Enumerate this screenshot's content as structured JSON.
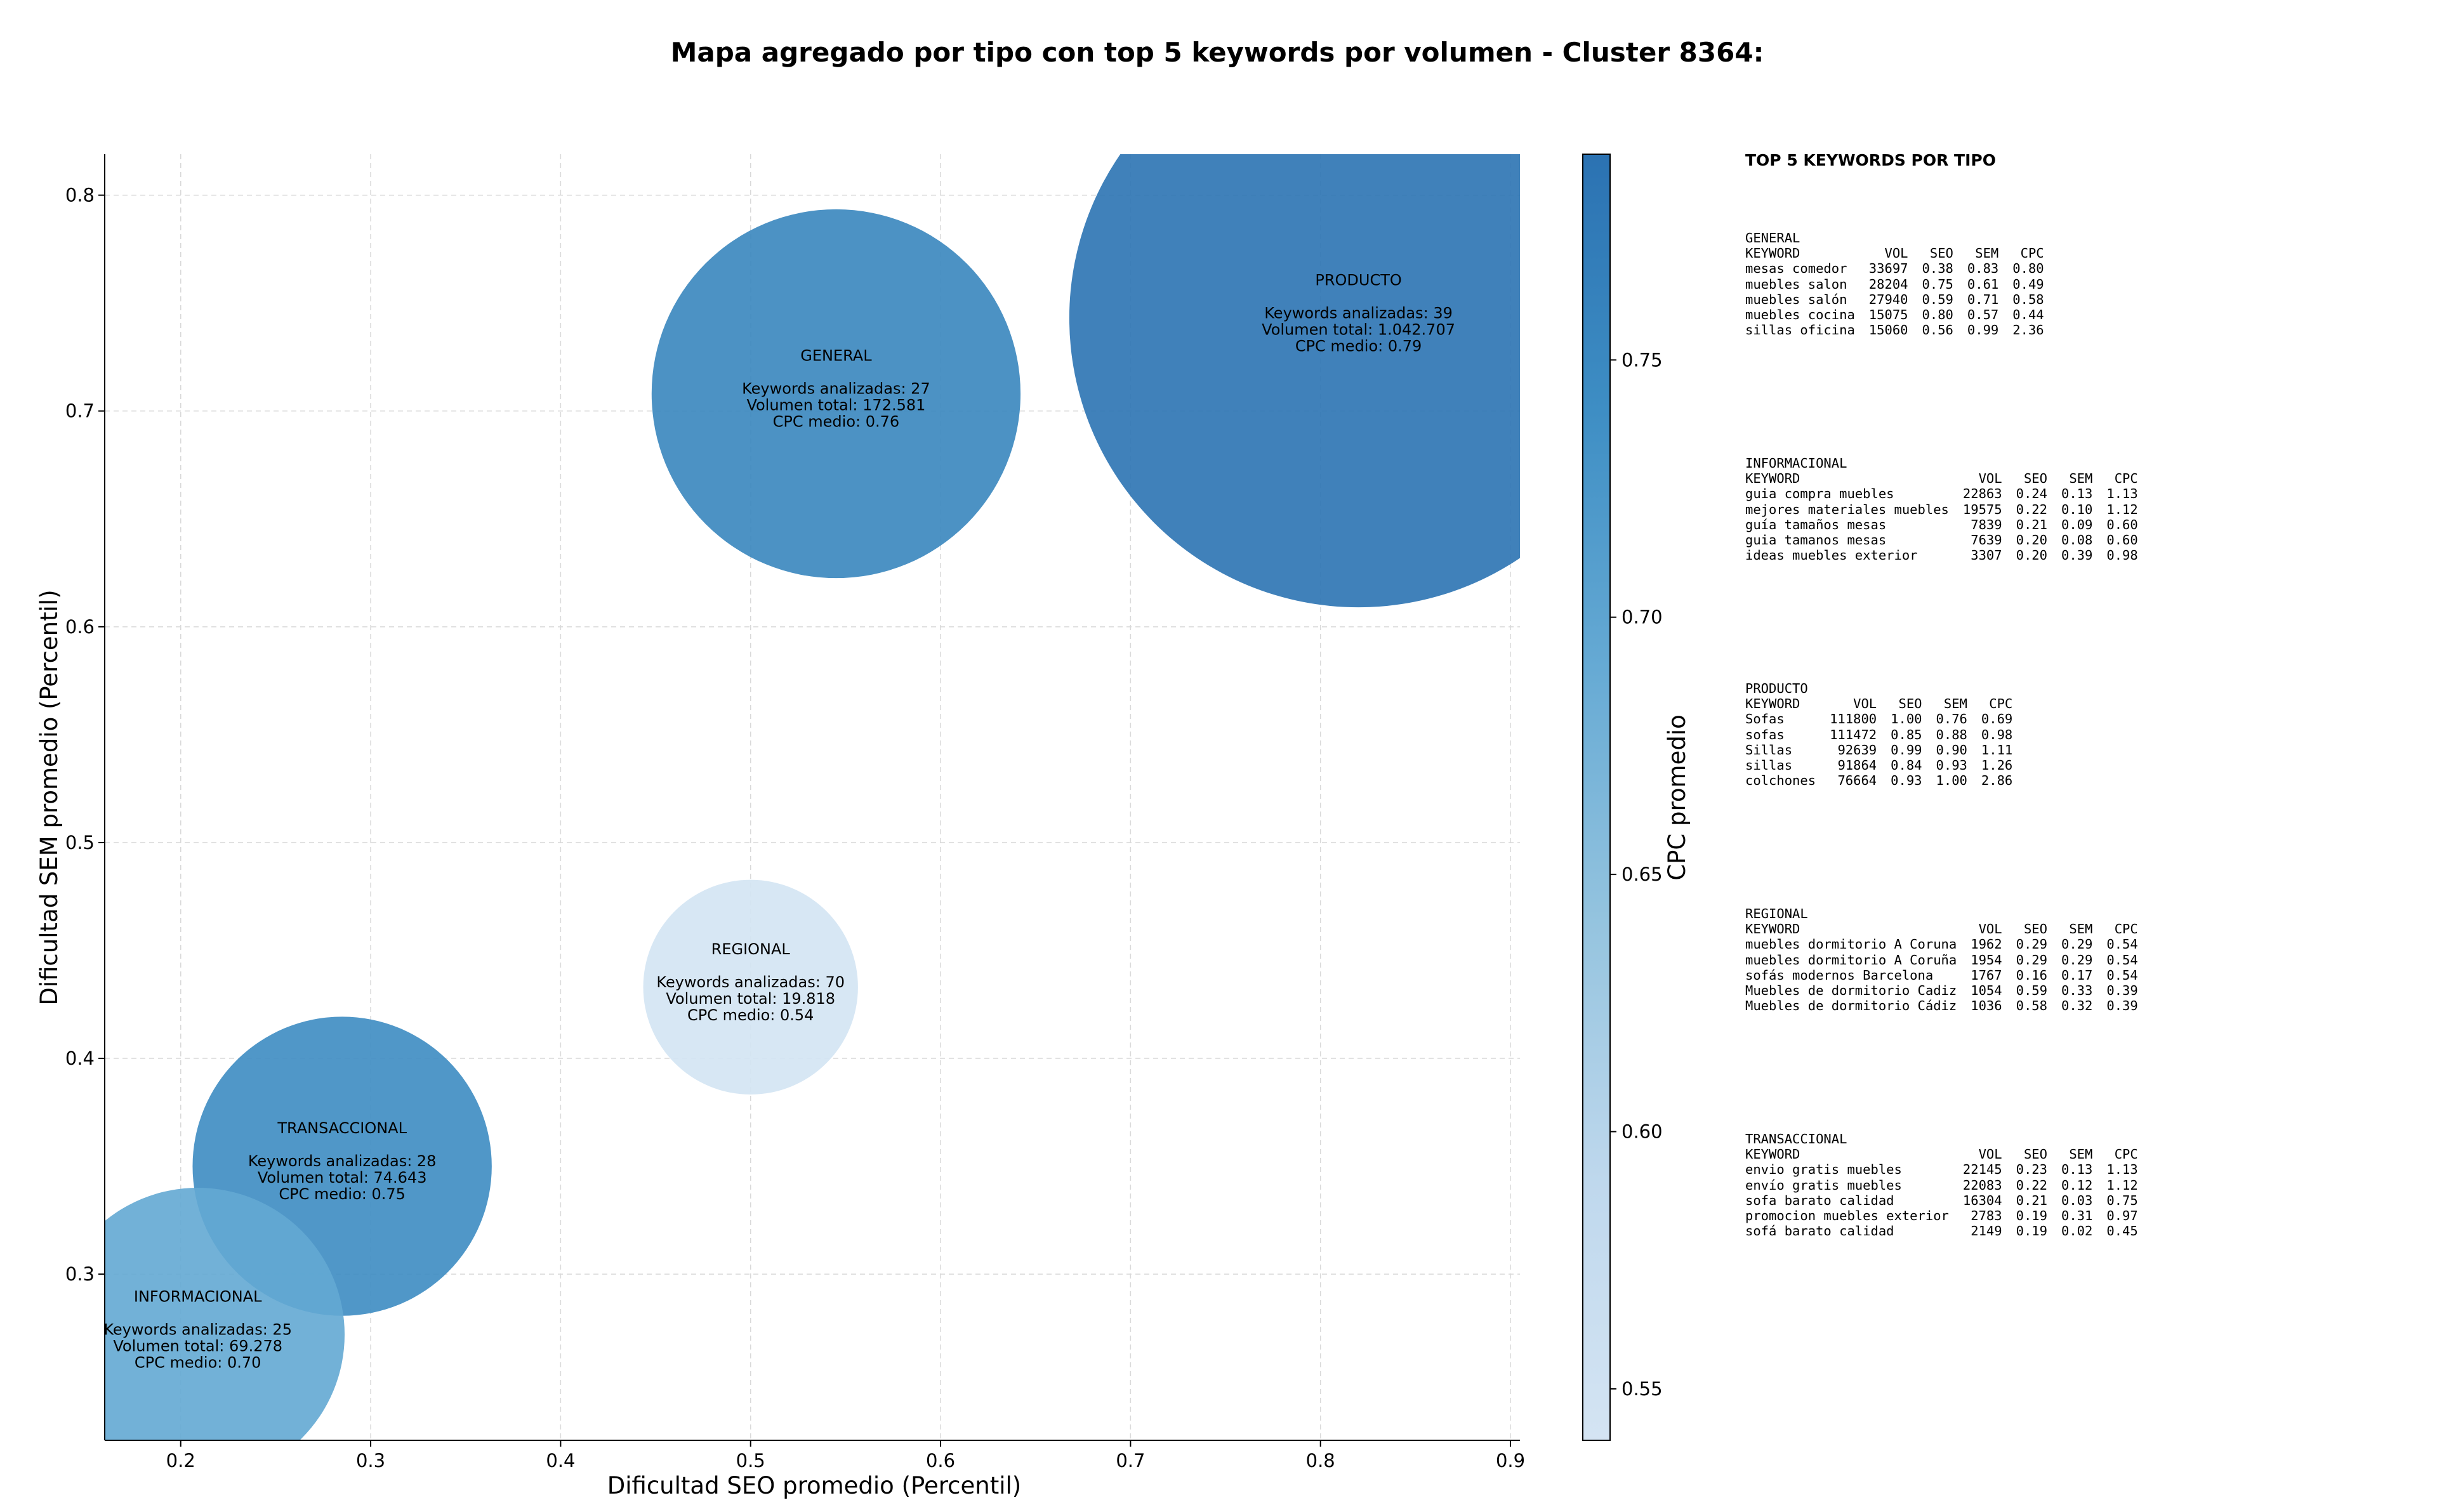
{
  "chart_data": {
    "type": "scatter",
    "title": "Mapa agregado por tipo con top 5 keywords por volumen - Cluster 8364:",
    "xlabel": "Dificultad SEO promedio (Percentil)",
    "ylabel": "Dificultad SEM promedio (Percentil)",
    "xlim": [
      0.16,
      0.905
    ],
    "ylim": [
      0.223,
      0.819
    ],
    "xticks": [
      0.2,
      0.3,
      0.4,
      0.5,
      0.6,
      0.7,
      0.8,
      0.9
    ],
    "yticks": [
      0.3,
      0.4,
      0.5,
      0.6,
      0.7,
      0.8
    ],
    "grid": true,
    "colorbar": {
      "label": "CPC promedio",
      "range": [
        0.54,
        0.79
      ],
      "ticks": [
        0.55,
        0.6,
        0.65,
        0.7,
        0.75
      ],
      "colormap": "Blues",
      "colors": [
        "#d3e4f3",
        "#c6dbef",
        "#9ecae1",
        "#6baed6",
        "#4292c6",
        "#2b73b3"
      ]
    },
    "points": [
      {
        "name": "PRODUCTO",
        "x": 0.82,
        "y": 0.743,
        "keywords": 39,
        "volume": 1042707,
        "cpc": 0.79,
        "label_line1": "PRODUCTO",
        "label_line2": "Keywords analizadas: 39",
        "label_line3": "Volumen total: 1.042.707",
        "label_line4": "CPC medio: 0.79"
      },
      {
        "name": "GENERAL",
        "x": 0.545,
        "y": 0.708,
        "keywords": 27,
        "volume": 172581,
        "cpc": 0.76,
        "label_line1": "GENERAL",
        "label_line2": "Keywords analizadas: 27",
        "label_line3": "Volumen total: 172.581",
        "label_line4": "CPC medio: 0.76"
      },
      {
        "name": "REGIONAL",
        "x": 0.5,
        "y": 0.433,
        "keywords": 70,
        "volume": 19818,
        "cpc": 0.54,
        "label_line1": "REGIONAL",
        "label_line2": "Keywords analizadas: 70",
        "label_line3": "Volumen total: 19.818",
        "label_line4": "CPC medio: 0.54"
      },
      {
        "name": "TRANSACCIONAL",
        "x": 0.285,
        "y": 0.35,
        "keywords": 28,
        "volume": 74643,
        "cpc": 0.75,
        "label_line1": "TRANSACCIONAL",
        "label_line2": "Keywords analizadas: 28",
        "label_line3": "Volumen total: 74.643",
        "label_line4": "CPC medio: 0.75"
      },
      {
        "name": "INFORMACIONAL",
        "x": 0.209,
        "y": 0.272,
        "keywords": 25,
        "volume": 69278,
        "cpc": 0.7,
        "label_line1": "INFORMACIONAL",
        "label_line2": "Keywords analizadas: 25",
        "label_line3": "Volumen total: 69.278",
        "label_line4": "CPC medio: 0.70"
      }
    ]
  },
  "top_keywords": {
    "title": "TOP 5 KEYWORDS POR TIPO",
    "header": {
      "keyword": "KEYWORD",
      "vol": "VOL",
      "seo": "SEO",
      "sem": "SEM",
      "cpc": "CPC"
    },
    "groups": [
      {
        "name": "GENERAL",
        "rows": [
          {
            "keyword": "mesas comedor",
            "vol": "33697",
            "seo": "0.38",
            "sem": "0.83",
            "cpc": "0.80"
          },
          {
            "keyword": "muebles salon",
            "vol": "28204",
            "seo": "0.75",
            "sem": "0.61",
            "cpc": "0.49"
          },
          {
            "keyword": "muebles salón",
            "vol": "27940",
            "seo": "0.59",
            "sem": "0.71",
            "cpc": "0.58"
          },
          {
            "keyword": "muebles cocina",
            "vol": "15075",
            "seo": "0.80",
            "sem": "0.57",
            "cpc": "0.44"
          },
          {
            "keyword": "sillas oficina",
            "vol": "15060",
            "seo": "0.56",
            "sem": "0.99",
            "cpc": "2.36"
          }
        ]
      },
      {
        "name": "INFORMACIONAL",
        "rows": [
          {
            "keyword": "guia compra muebles",
            "vol": "22863",
            "seo": "0.24",
            "sem": "0.13",
            "cpc": "1.13"
          },
          {
            "keyword": "mejores materiales muebles",
            "vol": "19575",
            "seo": "0.22",
            "sem": "0.10",
            "cpc": "1.12"
          },
          {
            "keyword": "guía tamaños mesas",
            "vol": "7839",
            "seo": "0.21",
            "sem": "0.09",
            "cpc": "0.60"
          },
          {
            "keyword": "guia tamanos mesas",
            "vol": "7639",
            "seo": "0.20",
            "sem": "0.08",
            "cpc": "0.60"
          },
          {
            "keyword": "ideas muebles exterior",
            "vol": "3307",
            "seo": "0.20",
            "sem": "0.39",
            "cpc": "0.98"
          }
        ]
      },
      {
        "name": "PRODUCTO",
        "rows": [
          {
            "keyword": "Sofas",
            "vol": "111800",
            "seo": "1.00",
            "sem": "0.76",
            "cpc": "0.69"
          },
          {
            "keyword": "sofas",
            "vol": "111472",
            "seo": "0.85",
            "sem": "0.88",
            "cpc": "0.98"
          },
          {
            "keyword": "Sillas",
            "vol": "92639",
            "seo": "0.99",
            "sem": "0.90",
            "cpc": "1.11"
          },
          {
            "keyword": "sillas",
            "vol": "91864",
            "seo": "0.84",
            "sem": "0.93",
            "cpc": "1.26"
          },
          {
            "keyword": "colchones",
            "vol": "76664",
            "seo": "0.93",
            "sem": "1.00",
            "cpc": "2.86"
          }
        ]
      },
      {
        "name": "REGIONAL",
        "rows": [
          {
            "keyword": "muebles dormitorio A Coruna",
            "vol": "1962",
            "seo": "0.29",
            "sem": "0.29",
            "cpc": "0.54"
          },
          {
            "keyword": "muebles dormitorio A Coruña",
            "vol": "1954",
            "seo": "0.29",
            "sem": "0.29",
            "cpc": "0.54"
          },
          {
            "keyword": "sofás modernos Barcelona",
            "vol": "1767",
            "seo": "0.16",
            "sem": "0.17",
            "cpc": "0.54"
          },
          {
            "keyword": "Muebles de dormitorio Cadiz",
            "vol": "1054",
            "seo": "0.59",
            "sem": "0.33",
            "cpc": "0.39"
          },
          {
            "keyword": "Muebles de dormitorio Cádiz",
            "vol": "1036",
            "seo": "0.58",
            "sem": "0.32",
            "cpc": "0.39"
          }
        ]
      },
      {
        "name": "TRANSACCIONAL",
        "rows": [
          {
            "keyword": "envio gratis muebles",
            "vol": "22145",
            "seo": "0.23",
            "sem": "0.13",
            "cpc": "1.13"
          },
          {
            "keyword": "envío gratis muebles",
            "vol": "22083",
            "seo": "0.22",
            "sem": "0.12",
            "cpc": "1.12"
          },
          {
            "keyword": "sofa barato calidad",
            "vol": "16304",
            "seo": "0.21",
            "sem": "0.03",
            "cpc": "0.75"
          },
          {
            "keyword": "promocion muebles exterior",
            "vol": "2783",
            "seo": "0.19",
            "sem": "0.31",
            "cpc": "0.97"
          },
          {
            "keyword": "sofá barato calidad",
            "vol": "2149",
            "seo": "0.19",
            "sem": "0.02",
            "cpc": "0.45"
          }
        ]
      }
    ]
  }
}
